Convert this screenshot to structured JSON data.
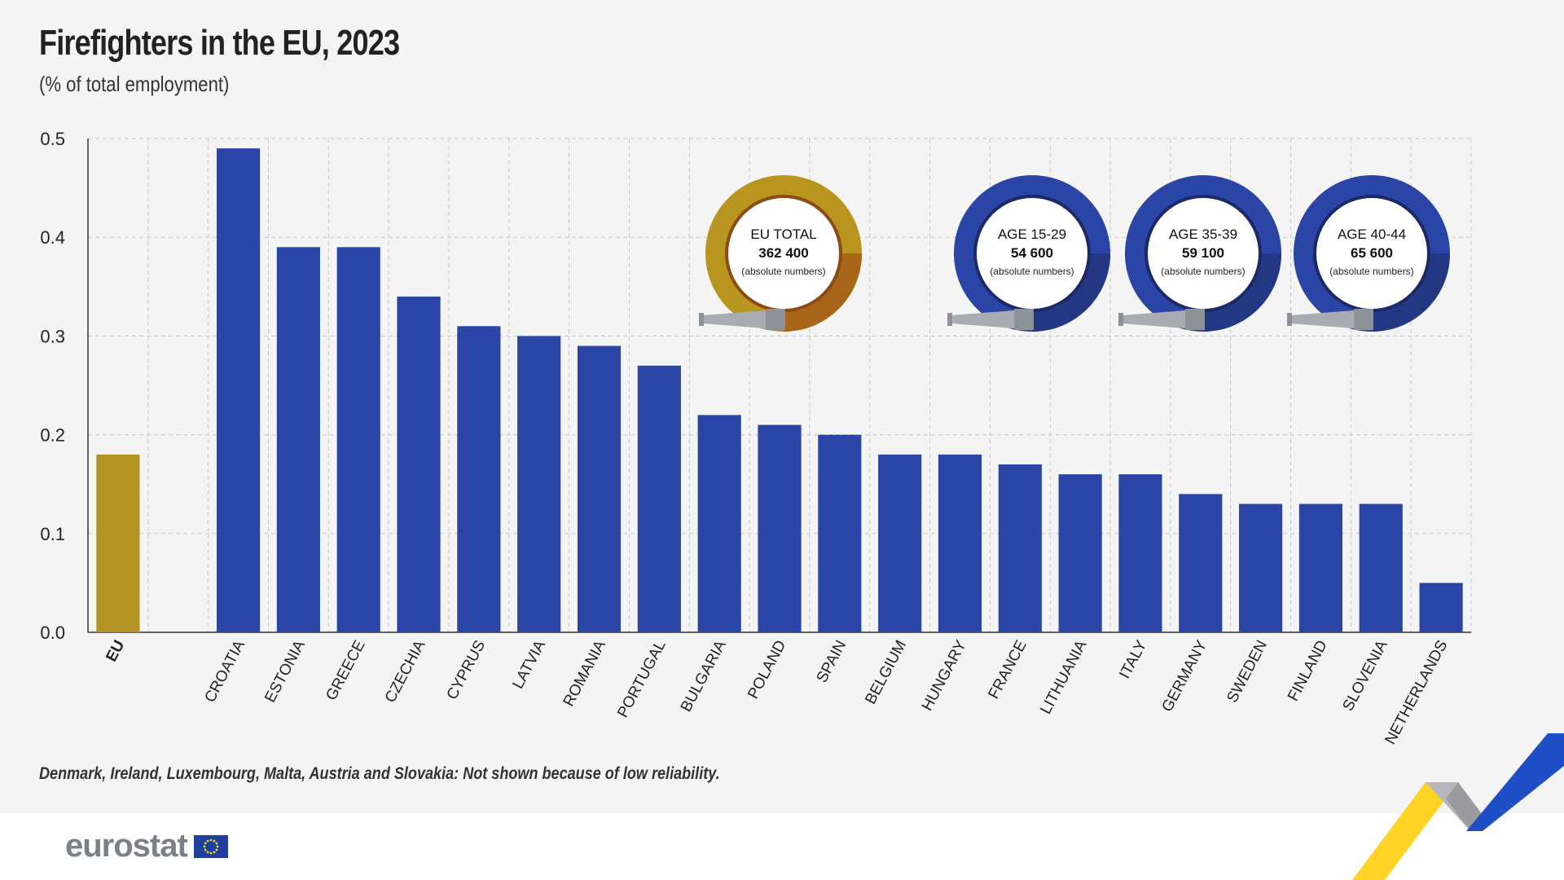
{
  "header": {
    "title": "Firefighters in the EU, 2023",
    "subtitle": "(% of total employment)"
  },
  "footnote": "Denmark, Ireland, Luxembourg, Malta, Austria and Slovakia: Not shown because of low reliability.",
  "logo": {
    "text": "eurostat",
    "flag_icon": "eu-flag-icon"
  },
  "colors": {
    "eu_bar": "#b39324",
    "country_bar": "#2b45a6",
    "grid": "#c8c8c8",
    "badge_gold": "#b8951f",
    "badge_gold_dark": "#a8661b",
    "badge_blue": "#2b45a6",
    "badge_blue_dark": "#243783"
  },
  "badges": [
    {
      "line1": "EU TOTAL",
      "value": "362 400",
      "note": "(absolute numbers)",
      "style": "gold"
    },
    {
      "line1": "AGE 15-29",
      "value": "54 600",
      "note": "(absolute numbers)",
      "style": "blue"
    },
    {
      "line1": "AGE 35-39",
      "value": "59 100",
      "note": "(absolute numbers)",
      "style": "blue"
    },
    {
      "line1": "AGE 40-44",
      "value": "65 600",
      "note": "(absolute numbers)",
      "style": "blue"
    }
  ],
  "chart_data": {
    "type": "bar",
    "title": "Firefighters in the EU, 2023",
    "ylabel": "% of total employment",
    "xlabel": "",
    "ylim": [
      0,
      0.5
    ],
    "yticks": [
      "0.0",
      "0.1",
      "0.2",
      "0.3",
      "0.4",
      "0.5"
    ],
    "grid": true,
    "categories": [
      "EU",
      "",
      "CROATIA",
      "ESTONIA",
      "GREECE",
      "CZECHIA",
      "CYPRUS",
      "LATVIA",
      "ROMANIA",
      "PORTUGAL",
      "BULGARIA",
      "POLAND",
      "SPAIN",
      "BELGIUM",
      "HUNGARY",
      "FRANCE",
      "LITHUANIA",
      "ITALY",
      "GERMANY",
      "SWEDEN",
      "FINLAND",
      "SLOVENIA",
      "NETHERLANDS"
    ],
    "values": [
      0.18,
      null,
      0.49,
      0.39,
      0.39,
      0.34,
      0.31,
      0.3,
      0.29,
      0.27,
      0.22,
      0.21,
      0.2,
      0.18,
      0.18,
      0.17,
      0.16,
      0.16,
      0.14,
      0.13,
      0.13,
      0.13,
      0.05
    ]
  }
}
